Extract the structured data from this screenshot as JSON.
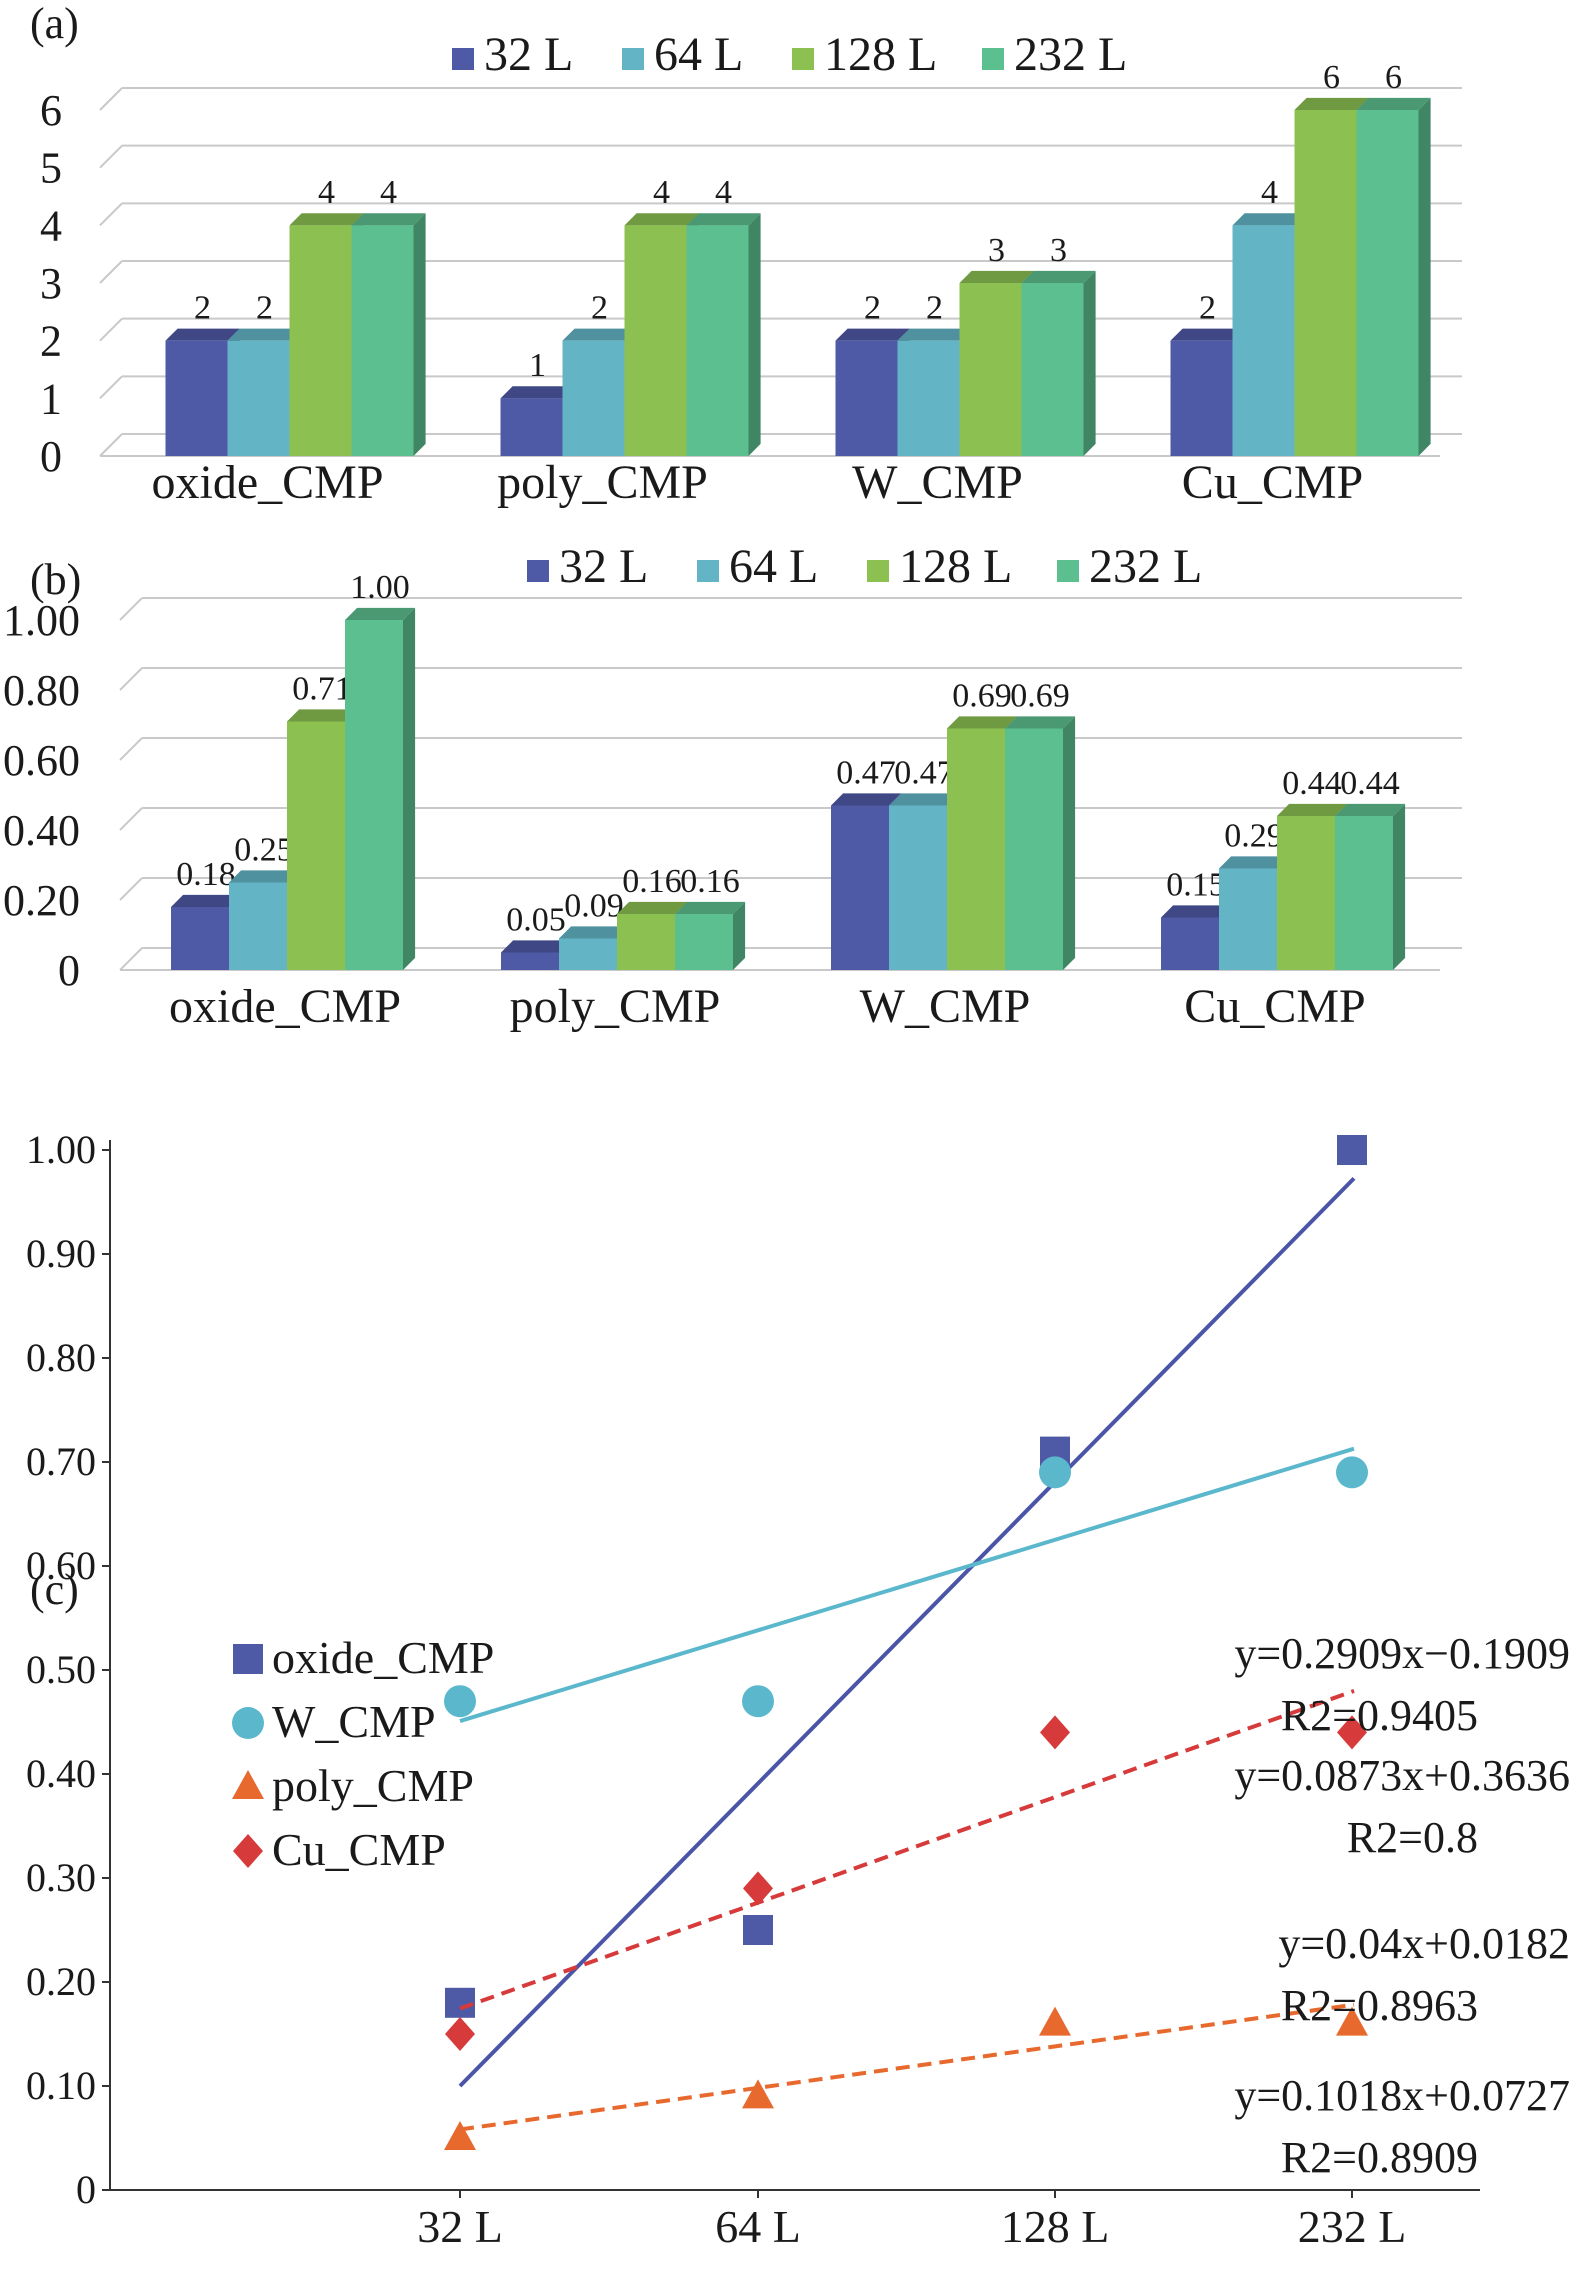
{
  "chart_data": [
    {
      "panel": "(a)",
      "type": "bar",
      "categories": [
        "oxide_CMP",
        "poly_CMP",
        "W_CMP",
        "Cu_CMP"
      ],
      "yticks": [
        "0",
        "1",
        "2",
        "3",
        "4",
        "5",
        "6"
      ],
      "ylim": [
        0,
        6
      ],
      "grid": true,
      "legend_position": "top",
      "series": [
        {
          "name": "32 L",
          "color": "#4f5aa6",
          "values": [
            2,
            1,
            2,
            2
          ],
          "labels": [
            "2",
            "1",
            "2",
            "2"
          ]
        },
        {
          "name": "64 L",
          "color": "#63b5c6",
          "values": [
            2,
            2,
            2,
            4
          ],
          "labels": [
            "2",
            "2",
            "2",
            "4"
          ]
        },
        {
          "name": "128 L",
          "color": "#8cc152",
          "values": [
            4,
            4,
            3,
            6
          ],
          "labels": [
            "4",
            "4",
            "3",
            "6"
          ]
        },
        {
          "name": "232 L",
          "color": "#5cbf8f",
          "values": [
            4,
            4,
            3,
            6
          ],
          "labels": [
            "4",
            "4",
            "3",
            "6"
          ]
        }
      ]
    },
    {
      "panel": "(b)",
      "type": "bar",
      "categories": [
        "oxide_CMP",
        "poly_CMP",
        "W_CMP",
        "Cu_CMP"
      ],
      "yticks": [
        "0",
        "0.20",
        "0.40",
        "0.60",
        "0.80",
        "1.00"
      ],
      "ylim": [
        0,
        1.0
      ],
      "grid": true,
      "legend_position": "top",
      "series": [
        {
          "name": "32 L",
          "color": "#4f5aa6",
          "values": [
            0.18,
            0.05,
            0.47,
            0.15
          ],
          "labels": [
            "0.18",
            "0.05",
            "0.47",
            "0.15"
          ]
        },
        {
          "name": "64 L",
          "color": "#63b5c6",
          "values": [
            0.25,
            0.09,
            0.47,
            0.29
          ],
          "labels": [
            "0.25",
            "0.09",
            "0.47",
            "0.29"
          ]
        },
        {
          "name": "128 L",
          "color": "#8cc152",
          "values": [
            0.71,
            0.16,
            0.69,
            0.44
          ],
          "labels": [
            "0.71",
            "0.16",
            "0.69",
            "0.44"
          ]
        },
        {
          "name": "232 L",
          "color": "#5cbf8f",
          "values": [
            1.0,
            0.16,
            0.69,
            0.44
          ],
          "labels": [
            "1.00",
            "0.16",
            "0.69",
            "0.44"
          ]
        }
      ]
    },
    {
      "panel": "(c)",
      "type": "scatter",
      "categories": [
        "32 L",
        "64 L",
        "128 L",
        "232 L"
      ],
      "yticks": [
        "0",
        "0.10",
        "0.20",
        "0.30",
        "0.40",
        "0.50",
        "0.60",
        "0.70",
        "0.80",
        "0.90",
        "1.00"
      ],
      "ylim": [
        0,
        1.0
      ],
      "legend_position": "top-left",
      "series": [
        {
          "name": "oxide_CMP",
          "marker": "square",
          "color": "#4f5aa6",
          "line_color": "#4b55a8",
          "dash": false,
          "values": [
            0.18,
            0.25,
            0.71,
            1.0
          ],
          "fit": {
            "slope": 0.2909,
            "intercept": -0.1909
          },
          "equation": "y=0.2909x−0.1909",
          "r2": "R2=0.9405"
        },
        {
          "name": "W_CMP",
          "marker": "circle",
          "color": "#5bb8cc",
          "line_color": "#5bb8cc",
          "dash": false,
          "values": [
            0.47,
            0.47,
            0.69,
            0.69
          ],
          "fit": {
            "slope": 0.0873,
            "intercept": 0.3636
          },
          "equation": "y=0.0873x+0.3636",
          "r2": "R2=0.8"
        },
        {
          "name": "poly_CMP",
          "marker": "triangle",
          "color": "#e8692e",
          "line_color": "#e8692e",
          "dash": true,
          "values": [
            0.05,
            0.09,
            0.16,
            0.16
          ],
          "fit": {
            "slope": 0.04,
            "intercept": 0.0182
          },
          "equation": "y=0.04x+0.0182",
          "r2": "R2=0.8963"
        },
        {
          "name": "Cu_CMP",
          "marker": "diamond",
          "color": "#d63a3a",
          "line_color": "#d63a3a",
          "dash": true,
          "values": [
            0.15,
            0.29,
            0.44,
            0.44
          ],
          "fit": {
            "slope": 0.1018,
            "intercept": 0.0727
          },
          "equation": "y=0.1018x+0.0727",
          "r2": "R2=0.8909"
        }
      ]
    }
  ]
}
